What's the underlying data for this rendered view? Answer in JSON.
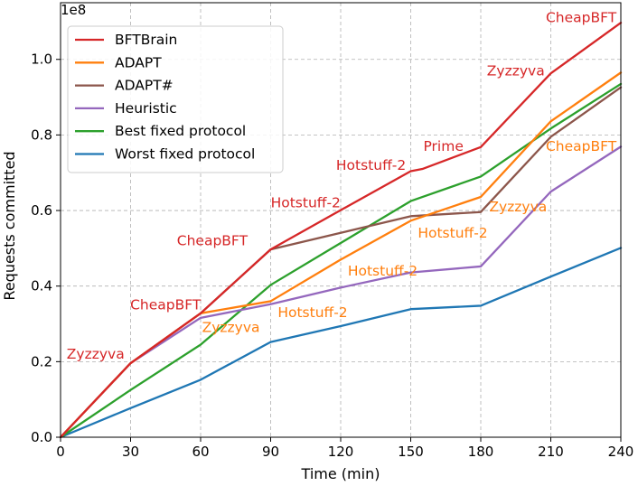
{
  "chart_data": {
    "type": "line",
    "title": "",
    "xlabel": "Time (min)",
    "ylabel": "Requests committed",
    "y_multiplier_label": "1e8",
    "xlim": [
      0,
      240
    ],
    "ylim": [
      0,
      1.15
    ],
    "x_ticks": [
      0,
      30,
      60,
      90,
      120,
      150,
      180,
      210,
      240
    ],
    "y_ticks": [
      0.0,
      0.2,
      0.4,
      0.6,
      0.8,
      1.0
    ],
    "y_tick_labels": [
      "0.0",
      "0.2",
      "0.4",
      "0.6",
      "0.8",
      "1.0"
    ],
    "grid": true,
    "grid_style": "dashed",
    "legend_position": "top-left",
    "series": [
      {
        "name": "BFTBrain",
        "color": "#d62728",
        "x": [
          0,
          30,
          60,
          90,
          120,
          150,
          155,
          180,
          210,
          240
        ],
        "y": [
          0.0,
          0.196,
          0.328,
          0.497,
          0.601,
          0.704,
          0.71,
          0.768,
          0.963,
          1.097
        ]
      },
      {
        "name": "ADAPT",
        "color": "#ff7f0e",
        "x": [
          0,
          30,
          60,
          90,
          120,
          150,
          180,
          210,
          240
        ],
        "y": [
          0.0,
          0.196,
          0.328,
          0.36,
          0.47,
          0.573,
          0.636,
          0.836,
          0.965
        ]
      },
      {
        "name": "ADAPT#",
        "color": "#8c564b",
        "x": [
          0,
          30,
          60,
          90,
          150,
          180,
          210,
          240
        ],
        "y": [
          0.0,
          0.196,
          0.328,
          0.497,
          0.585,
          0.596,
          0.795,
          0.926
        ]
      },
      {
        "name": "Heuristic",
        "color": "#9467bd",
        "x": [
          0,
          30,
          60,
          90,
          120,
          150,
          180,
          210,
          240
        ],
        "y": [
          0.0,
          0.196,
          0.316,
          0.352,
          0.396,
          0.436,
          0.452,
          0.65,
          0.769
        ]
      },
      {
        "name": "Best fixed protocol",
        "color": "#2ca02c",
        "x": [
          0,
          30,
          60,
          90,
          120,
          150,
          180,
          210,
          240
        ],
        "y": [
          0.0,
          0.125,
          0.245,
          0.403,
          0.514,
          0.625,
          0.69,
          0.817,
          0.935
        ]
      },
      {
        "name": "Worst fixed protocol",
        "color": "#1f77b4",
        "x": [
          0,
          30,
          60,
          90,
          120,
          150,
          180,
          210,
          240
        ],
        "y": [
          0.0,
          0.077,
          0.152,
          0.252,
          0.294,
          0.339,
          0.348,
          0.425,
          0.501
        ]
      }
    ],
    "annotations": [
      {
        "text": "Zyzzyva",
        "x": 15,
        "y": 0.22,
        "color": "#d62728"
      },
      {
        "text": "CheapBFT",
        "x": 45,
        "y": 0.35,
        "color": "#d62728"
      },
      {
        "text": "CheapBFT",
        "x": 65,
        "y": 0.52,
        "color": "#d62728"
      },
      {
        "text": "Hotstuff-2",
        "x": 105,
        "y": 0.62,
        "color": "#d62728"
      },
      {
        "text": "Hotstuff-2",
        "x": 133,
        "y": 0.72,
        "color": "#d62728"
      },
      {
        "text": "Prime",
        "x": 164,
        "y": 0.77,
        "color": "#d62728"
      },
      {
        "text": "Zyzzyva",
        "x": 195,
        "y": 0.97,
        "color": "#d62728"
      },
      {
        "text": "CheapBFT",
        "x": 223,
        "y": 1.11,
        "color": "#d62728"
      },
      {
        "text": "Zyzzyva",
        "x": 73,
        "y": 0.29,
        "color": "#ff7f0e"
      },
      {
        "text": "Hotstuff-2",
        "x": 108,
        "y": 0.33,
        "color": "#ff7f0e"
      },
      {
        "text": "Hotstuff-2",
        "x": 138,
        "y": 0.44,
        "color": "#ff7f0e"
      },
      {
        "text": "Hotstuff-2",
        "x": 168,
        "y": 0.54,
        "color": "#ff7f0e"
      },
      {
        "text": "Zyzzyva",
        "x": 196,
        "y": 0.61,
        "color": "#ff7f0e"
      },
      {
        "text": "CheapBFT",
        "x": 223,
        "y": 0.77,
        "color": "#ff7f0e"
      }
    ]
  }
}
